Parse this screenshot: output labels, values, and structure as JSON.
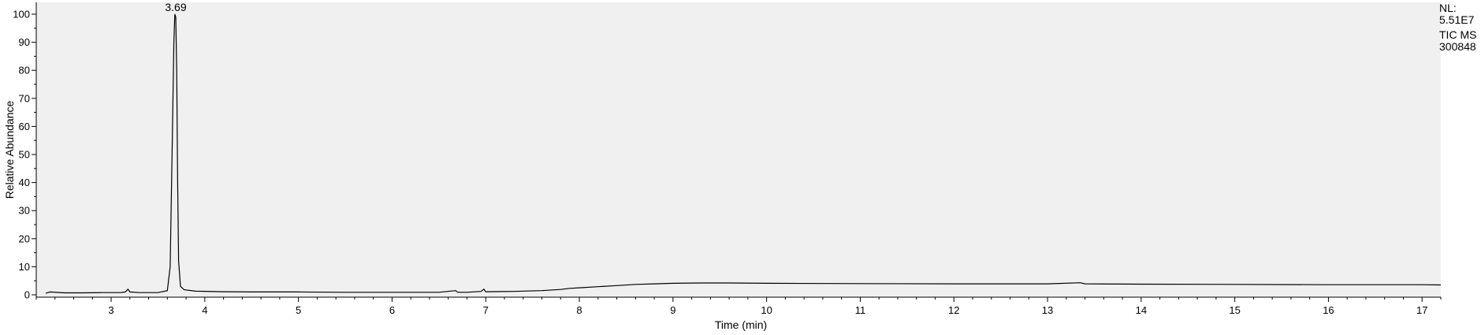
{
  "chart_data": {
    "type": "line",
    "xlabel": "Time (min)",
    "ylabel": "Relative Abundance",
    "xlim": [
      2.2,
      17.2
    ],
    "ylim": [
      0,
      100
    ],
    "x_ticks": [
      3,
      4,
      5,
      6,
      7,
      8,
      9,
      10,
      11,
      12,
      13,
      14,
      15,
      16,
      17
    ],
    "y_ticks": [
      0,
      10,
      20,
      30,
      40,
      50,
      60,
      70,
      80,
      90,
      100
    ],
    "peak_annotation": {
      "x": 3.69,
      "y": 100,
      "label": "3.69"
    },
    "side_labels": [
      "NL:",
      "5.51E7",
      "TIC  MS",
      "300848"
    ],
    "colors": {
      "plot_background": "#f0f0f0",
      "trace": "#000000"
    },
    "series": [
      {
        "x": [
          2.3,
          2.35,
          2.5,
          2.7,
          2.9,
          3.1,
          3.15,
          3.18,
          3.2,
          3.3,
          3.5,
          3.6,
          3.63,
          3.65,
          3.67,
          3.68,
          3.69,
          3.7,
          3.71,
          3.72,
          3.74,
          3.78,
          3.9,
          4.2,
          4.5,
          5.0,
          5.5,
          6.0,
          6.5,
          6.68,
          6.7,
          6.8,
          6.95,
          6.98,
          7.0,
          7.3,
          7.6,
          7.8,
          7.9,
          8.0,
          8.2,
          8.4,
          8.6,
          8.8,
          9.0,
          9.3,
          9.6,
          10.0,
          11.0,
          12.0,
          13.0,
          13.35,
          13.4,
          14.0,
          15.0,
          16.0,
          17.0,
          17.2
        ],
        "y": [
          0.6,
          1.0,
          0.7,
          0.7,
          0.8,
          0.8,
          1.0,
          2.0,
          1.0,
          0.8,
          0.8,
          1.5,
          10,
          50,
          90,
          100,
          99,
          80,
          40,
          12,
          3,
          1.8,
          1.3,
          1.1,
          1.0,
          1.0,
          0.9,
          0.9,
          0.9,
          1.5,
          0.9,
          0.9,
          1.2,
          2.0,
          1.1,
          1.2,
          1.5,
          1.9,
          2.3,
          2.5,
          2.9,
          3.3,
          3.7,
          3.9,
          4.1,
          4.2,
          4.2,
          4.1,
          4.0,
          3.9,
          3.9,
          4.3,
          3.9,
          3.8,
          3.7,
          3.6,
          3.6,
          3.5
        ]
      }
    ]
  }
}
